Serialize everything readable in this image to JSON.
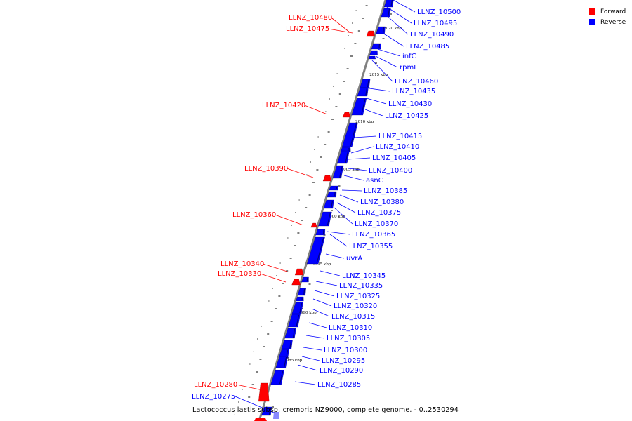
{
  "caption": "Lactococcus lactis subsp. cremoris NZ9000, complete genome. - 0..2530294",
  "legend": [
    {
      "label": "Forward",
      "color": "#ff0000"
    },
    {
      "label": "Reverse",
      "color": "#0000ff"
    }
  ],
  "colors": {
    "forward": "#ff0000",
    "reverse": "#0000ff",
    "axis": "#808080"
  },
  "scale_labels": [
    "2020 kbp",
    "2015 kbp",
    "2010 kbp",
    "2005 kbp",
    "2000 kbp",
    "1995 kbp",
    "1990 kbp",
    "1985 kbp"
  ],
  "forward_genes": [
    "LLNZ_10480",
    "LLNZ_10475",
    "LLNZ_10420",
    "LLNZ_10390",
    "LLNZ_10360",
    "LLNZ_10340",
    "LLNZ_10330",
    "LLNZ_10280"
  ],
  "reverse_genes": [
    "LLNZ_10500",
    "LLNZ_10495",
    "LLNZ_10490",
    "LLNZ_10485",
    "infC",
    "rpmI",
    "LLNZ_10460",
    "LLNZ_10435",
    "LLNZ_10430",
    "LLNZ_10425",
    "LLNZ_10415",
    "LLNZ_10410",
    "LLNZ_10405",
    "LLNZ_10400",
    "asnC",
    "LLNZ_10385",
    "LLNZ_10380",
    "LLNZ_10375",
    "LLNZ_10370",
    "LLNZ_10365",
    "LLNZ_10355",
    "uvrA",
    "LLNZ_10345",
    "LLNZ_10335",
    "LLNZ_10325",
    "LLNZ_10320",
    "LLNZ_10315",
    "LLNZ_10310",
    "LLNZ_10305",
    "LLNZ_10300",
    "LLNZ_10295",
    "LLNZ_10290",
    "LLNZ_10285",
    "LLNZ_10275"
  ]
}
